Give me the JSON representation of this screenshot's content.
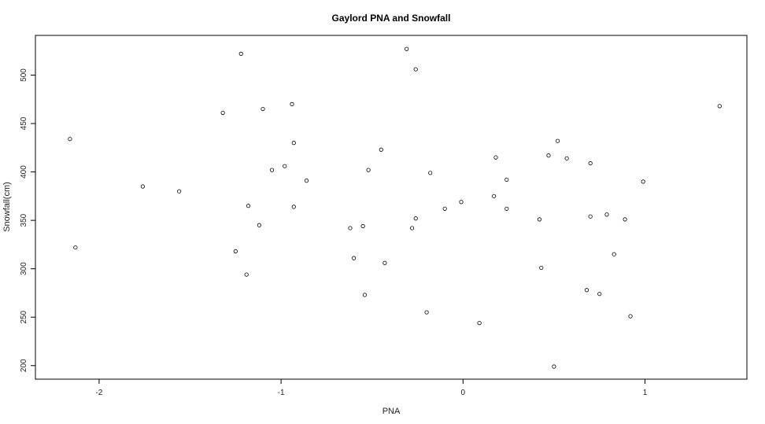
{
  "chart_data": {
    "type": "scatter",
    "title": "Gaylord PNA and Snowfall",
    "xlabel": "PNA",
    "ylabel": "Snowfall(cm)",
    "xlim": [
      -2.35,
      1.56
    ],
    "ylim": [
      186,
      541
    ],
    "x_ticks": [
      -2,
      -1,
      0,
      1
    ],
    "y_ticks": [
      200,
      250,
      300,
      350,
      400,
      450,
      500
    ],
    "grid": false,
    "points": [
      {
        "x": -2.16,
        "y": 434
      },
      {
        "x": -2.13,
        "y": 322
      },
      {
        "x": -1.76,
        "y": 385
      },
      {
        "x": -1.56,
        "y": 380
      },
      {
        "x": -1.32,
        "y": 461
      },
      {
        "x": -1.25,
        "y": 318
      },
      {
        "x": -1.22,
        "y": 522
      },
      {
        "x": -1.19,
        "y": 294
      },
      {
        "x": -1.18,
        "y": 365
      },
      {
        "x": -1.12,
        "y": 345
      },
      {
        "x": -1.1,
        "y": 465
      },
      {
        "x": -1.05,
        "y": 402
      },
      {
        "x": -0.98,
        "y": 406
      },
      {
        "x": -0.94,
        "y": 470
      },
      {
        "x": -0.93,
        "y": 430
      },
      {
        "x": -0.93,
        "y": 364
      },
      {
        "x": -0.86,
        "y": 391
      },
      {
        "x": -0.62,
        "y": 342
      },
      {
        "x": -0.6,
        "y": 311
      },
      {
        "x": -0.55,
        "y": 344
      },
      {
        "x": -0.54,
        "y": 273
      },
      {
        "x": -0.52,
        "y": 402
      },
      {
        "x": -0.45,
        "y": 423
      },
      {
        "x": -0.43,
        "y": 306
      },
      {
        "x": -0.31,
        "y": 527
      },
      {
        "x": -0.28,
        "y": 342
      },
      {
        "x": -0.26,
        "y": 506
      },
      {
        "x": -0.26,
        "y": 352
      },
      {
        "x": -0.2,
        "y": 255
      },
      {
        "x": -0.18,
        "y": 399
      },
      {
        "x": -0.1,
        "y": 362
      },
      {
        "x": -0.01,
        "y": 369
      },
      {
        "x": 0.09,
        "y": 244
      },
      {
        "x": 0.17,
        "y": 375
      },
      {
        "x": 0.18,
        "y": 415
      },
      {
        "x": 0.24,
        "y": 392
      },
      {
        "x": 0.24,
        "y": 362
      },
      {
        "x": 0.42,
        "y": 351
      },
      {
        "x": 0.43,
        "y": 301
      },
      {
        "x": 0.47,
        "y": 417
      },
      {
        "x": 0.5,
        "y": 199
      },
      {
        "x": 0.52,
        "y": 432
      },
      {
        "x": 0.57,
        "y": 414
      },
      {
        "x": 0.68,
        "y": 278
      },
      {
        "x": 0.7,
        "y": 409
      },
      {
        "x": 0.7,
        "y": 354
      },
      {
        "x": 0.75,
        "y": 274
      },
      {
        "x": 0.79,
        "y": 356
      },
      {
        "x": 0.83,
        "y": 315
      },
      {
        "x": 0.89,
        "y": 351
      },
      {
        "x": 0.92,
        "y": 251
      },
      {
        "x": 0.99,
        "y": 390
      },
      {
        "x": 1.41,
        "y": 468
      }
    ]
  }
}
